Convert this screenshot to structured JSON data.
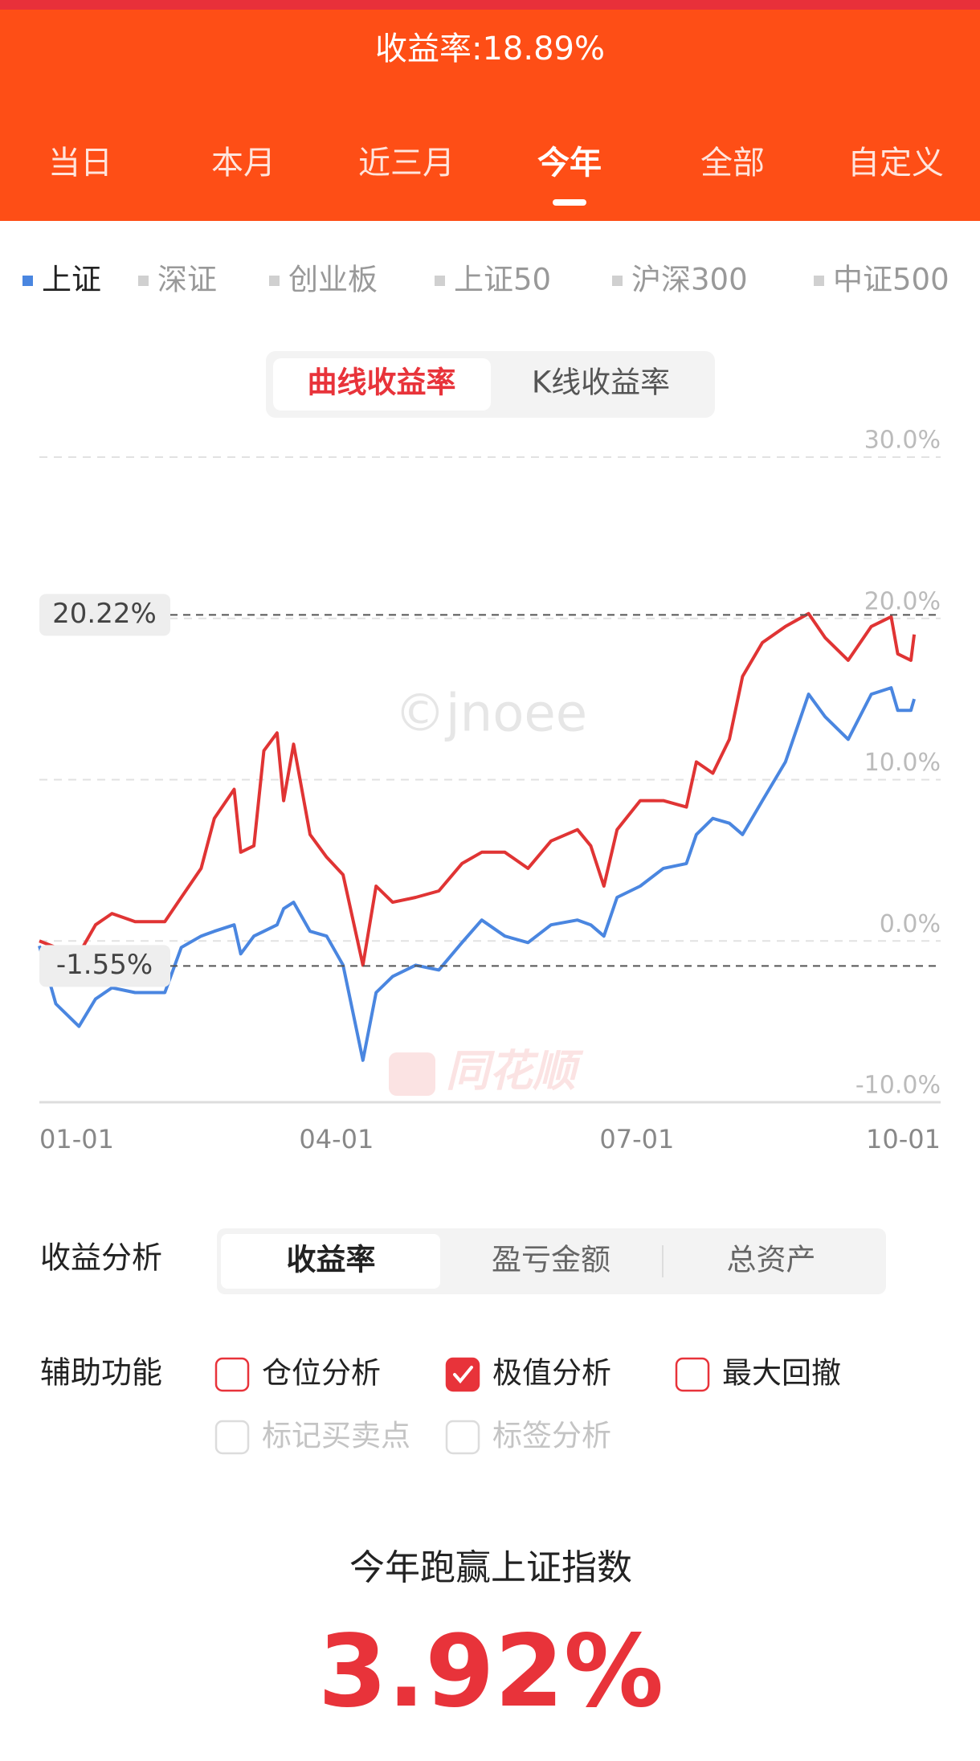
{
  "header": {
    "title": "收益率:18.89%"
  },
  "tabs": {
    "items": [
      "当日",
      "本月",
      "近三月",
      "今年",
      "全部",
      "自定义"
    ],
    "active": 3
  },
  "indices": {
    "items": [
      "上证",
      "深证",
      "创业板",
      "上证50",
      "沪深300",
      "中证500"
    ],
    "active": 0
  },
  "chart_mode": {
    "items": [
      "曲线收益率",
      "K线收益率"
    ],
    "active": 0
  },
  "chart_data": {
    "type": "line",
    "x": [
      0,
      5,
      12,
      17,
      22,
      29,
      38,
      43,
      49,
      53,
      59,
      61,
      65,
      68,
      72,
      74,
      77,
      82,
      87,
      92,
      98,
      102,
      107,
      114,
      121,
      128,
      134,
      141,
      148,
      155,
      163,
      167,
      171,
      175,
      182,
      189,
      196,
      199,
      204,
      209,
      213,
      219,
      226,
      233,
      238,
      245,
      252,
      258,
      260,
      264,
      265
    ],
    "series": [
      {
        "color": "#e03434",
        "values": [
          0,
          -0.4,
          -0.8,
          1,
          1.7,
          1.2,
          1.2,
          2.7,
          4.5,
          7.6,
          9.4,
          5.5,
          5.9,
          11.8,
          12.9,
          8.7,
          12.2,
          6.6,
          5.2,
          4.1,
          -1.5,
          3.4,
          2.4,
          2.7,
          3.1,
          4.8,
          5.5,
          5.5,
          4.5,
          6.2,
          6.9,
          5.9,
          3.4,
          6.9,
          8.7,
          8.7,
          8.3,
          11.1,
          10.4,
          12.5,
          16.4,
          18.5,
          19.5,
          20.3,
          18.8,
          17.4,
          19.5,
          20.1,
          17.8,
          17.4,
          19
        ]
      },
      {
        "color": "#4a86e0",
        "values": [
          -0.3,
          -3.9,
          -5.3,
          -3.6,
          -2.9,
          -3.2,
          -3.2,
          -0.4,
          0.3,
          0.6,
          1,
          -0.8,
          0.3,
          0.6,
          1,
          2,
          2.4,
          0.6,
          0.3,
          -1.5,
          -7.4,
          -3.2,
          -2.2,
          -1.5,
          -1.8,
          -0.1,
          1.3,
          0.3,
          -0.1,
          1,
          1.3,
          1,
          0.3,
          2.7,
          3.4,
          4.5,
          4.8,
          6.6,
          7.6,
          7.3,
          6.6,
          8.7,
          11.1,
          15.3,
          13.9,
          12.5,
          15.3,
          15.7,
          14.3,
          14.3,
          15
        ]
      }
    ],
    "xlim": [
      0,
      273
    ],
    "xticks": [
      {
        "value": 0,
        "label": "01-01"
      },
      {
        "value": 90,
        "label": "04-01"
      },
      {
        "value": 181,
        "label": "07-01"
      },
      {
        "value": 273,
        "label": "10-01"
      }
    ],
    "ylim": [
      -10,
      30
    ],
    "yticks": [
      {
        "value": -10,
        "label": "-10.0%"
      },
      {
        "value": 0,
        "label": "0.0%"
      },
      {
        "value": 10,
        "label": "10.0%"
      },
      {
        "value": 20,
        "label": "20.0%"
      },
      {
        "value": 30,
        "label": "30.0%"
      }
    ],
    "grid": true,
    "annotations": [
      {
        "value": 20.22,
        "label": "20.22%"
      },
      {
        "value": -1.55,
        "label": "-1.55%"
      }
    ],
    "watermarks": [
      "©jnoee",
      "同花顺"
    ]
  },
  "analysis": {
    "label": "收益分析",
    "items": [
      "收益率",
      "盈亏金额",
      "总资产"
    ],
    "active": 0
  },
  "assist": {
    "label": "辅助功能",
    "options": [
      {
        "label": "仓位分析",
        "checked": false,
        "disabled": false
      },
      {
        "label": "极值分析",
        "checked": true,
        "disabled": false
      },
      {
        "label": "最大回撤",
        "checked": false,
        "disabled": false
      },
      {
        "label": "标记买卖点",
        "checked": false,
        "disabled": true
      },
      {
        "label": "标签分析",
        "checked": false,
        "disabled": true
      }
    ]
  },
  "summary": {
    "title": "今年跑赢上证指数",
    "value": "3.92%"
  }
}
